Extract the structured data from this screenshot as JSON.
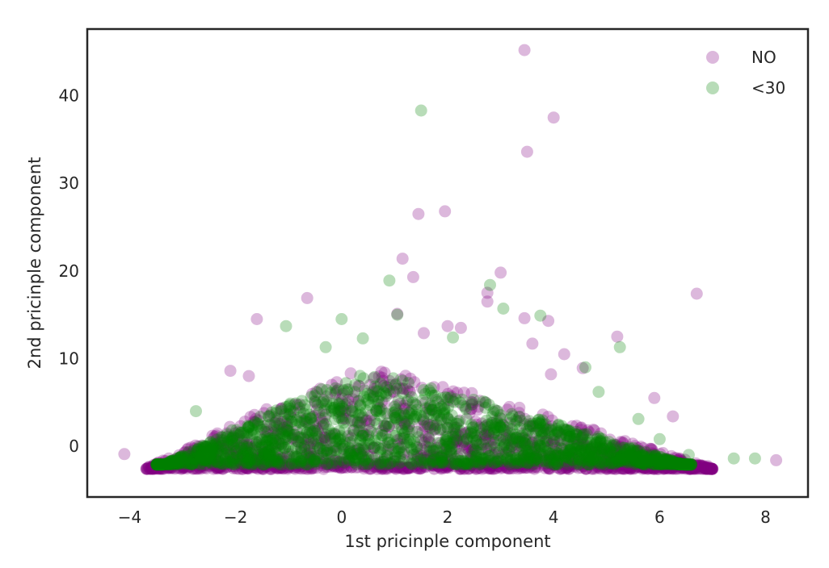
{
  "chart_data": {
    "type": "scatter",
    "xlabel": "1st pricinple component",
    "ylabel": "2nd pricinple component",
    "xlim": [
      -4.8,
      8.8
    ],
    "ylim": [
      -5.8,
      47.6
    ],
    "xticks": [
      -4,
      -2,
      0,
      2,
      4,
      6,
      8
    ],
    "yticks": [
      0,
      10,
      20,
      30,
      40
    ],
    "grid": false,
    "legend_position": "top-right",
    "series": [
      {
        "name": "NO",
        "color": "#800080",
        "alpha": 0.28,
        "points": [
          [
            3.45,
            45.2
          ],
          [
            4.0,
            37.5
          ],
          [
            3.5,
            33.6
          ],
          [
            1.45,
            26.5
          ],
          [
            1.95,
            26.8
          ],
          [
            1.15,
            21.4
          ],
          [
            1.35,
            19.3
          ],
          [
            3.0,
            19.8
          ],
          [
            2.75,
            17.5
          ],
          [
            6.7,
            17.4
          ],
          [
            -0.65,
            16.9
          ],
          [
            2.75,
            16.5
          ],
          [
            1.05,
            15.1
          ],
          [
            -1.6,
            14.5
          ],
          [
            3.45,
            14.6
          ],
          [
            3.9,
            14.3
          ],
          [
            1.55,
            12.9
          ],
          [
            5.2,
            12.5
          ],
          [
            3.6,
            11.7
          ],
          [
            4.2,
            10.5
          ],
          [
            -2.1,
            8.6
          ],
          [
            -1.75,
            8.0
          ],
          [
            8.2,
            -1.6
          ],
          [
            -4.1,
            -0.9
          ],
          [
            5.9,
            5.5
          ],
          [
            6.25,
            3.4
          ],
          [
            2.0,
            13.7
          ],
          [
            2.25,
            13.5
          ],
          [
            4.55,
            8.9
          ],
          [
            3.95,
            8.2
          ]
        ]
      },
      {
        "name": "<30",
        "color": "#008000",
        "alpha": 0.28,
        "points": [
          [
            1.5,
            38.3
          ],
          [
            0.9,
            18.9
          ],
          [
            2.8,
            18.4
          ],
          [
            3.05,
            15.7
          ],
          [
            1.05,
            15.0
          ],
          [
            3.75,
            14.9
          ],
          [
            -1.05,
            13.7
          ],
          [
            0.0,
            14.5
          ],
          [
            5.25,
            11.3
          ],
          [
            -0.3,
            11.3
          ],
          [
            0.4,
            12.3
          ],
          [
            4.6,
            9.0
          ],
          [
            7.4,
            -1.4
          ],
          [
            7.8,
            -1.4
          ],
          [
            6.55,
            -1.0
          ],
          [
            5.6,
            3.1
          ],
          [
            6.0,
            0.8
          ],
          [
            -2.75,
            4.0
          ],
          [
            4.85,
            6.2
          ],
          [
            2.1,
            12.4
          ]
        ]
      }
    ],
    "dense_cloud": {
      "note_series": [
        "NO",
        "<30"
      ],
      "x_range": [
        -3.7,
        7.0
      ],
      "y_min": -2.6,
      "peak_x": 0.5,
      "peak_y": 9.0
    }
  }
}
